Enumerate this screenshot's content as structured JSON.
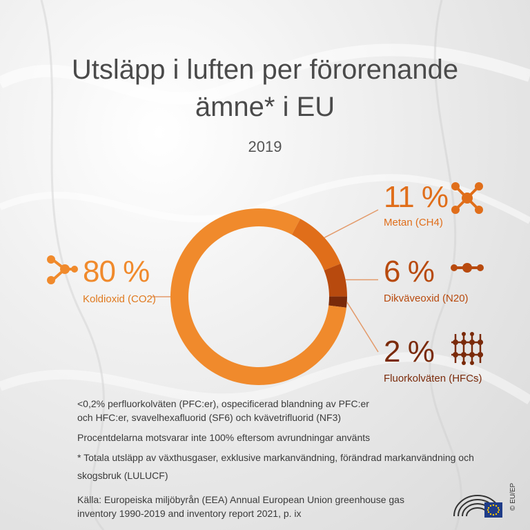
{
  "title_line1": "Utsläpp i luften per förorenande",
  "title_line2": "ämne* i EU",
  "year": "2019",
  "colors": {
    "co2": "#f08a2c",
    "ch4": "#e06e1a",
    "n2o": "#b84a0e",
    "hfc": "#7a2a0a",
    "connector": "#e39a6a"
  },
  "chart_data": {
    "type": "pie",
    "categories": [
      "Koldioxid (CO2)",
      "Metan (CH4)",
      "Dikväveoxid (N20)",
      "Fluorkolväten (HFCs)"
    ],
    "values": [
      80,
      11,
      6,
      2
    ],
    "value_labels": [
      "80 %",
      "11 %",
      "6 %",
      "2 %"
    ]
  },
  "labels": {
    "co2": {
      "value": "80 %",
      "name": "Koldioxid (CO2)",
      "icon": "molecule-icon"
    },
    "ch4": {
      "value": "11 %",
      "name": "Metan (CH4)",
      "icon": "molecule-cross-icon"
    },
    "n2o": {
      "value": "6 %",
      "name": "Dikväveoxid (N20)",
      "icon": "molecule-chain-icon"
    },
    "hfc": {
      "value": "2 %",
      "name": "Fluorkolväten (HFCs)",
      "icon": "molecule-grid-icon"
    }
  },
  "notes": {
    "pfc_line1": "<0,2% perfluorkolväten (PFC:er), ospecificerad blandning av PFC:er",
    "pfc_line2": "och HFC:er, svavelhexafluorid (SF6) och kvävetrifluorid (NF3)",
    "rounding": "Procentdelarna motsvarar inte 100% eftersom avrundningar använts",
    "footnote_line1": "* Totala utsläpp av växthusgaser, exklusive markanvändning, förändrad markanvändning och",
    "footnote_line2": "skogsbruk (LULUCF)"
  },
  "source": {
    "line1": "Källa: Europeiska miljöbyrån (EEA) Annual European Union greenhouse gas",
    "line2": "inventory 1990-2019 and inventory report 2021, p. ix"
  },
  "copyright": "© EU/EP"
}
